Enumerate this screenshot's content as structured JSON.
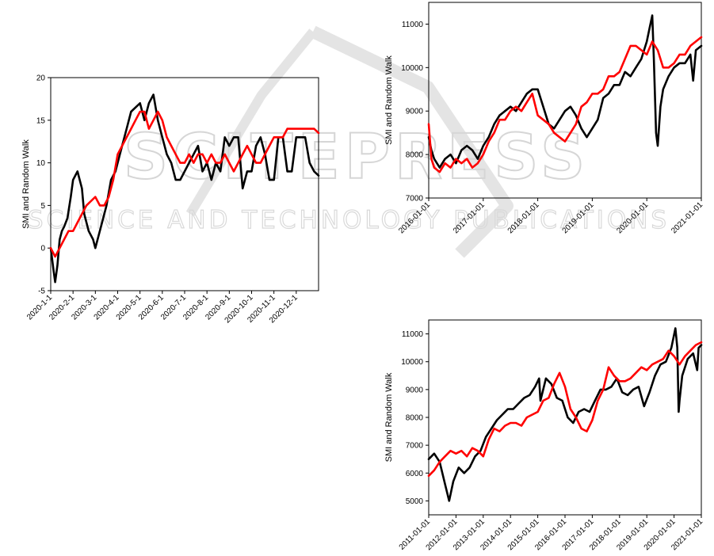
{
  "watermark": {
    "title": "SCITEPRESS",
    "subtitle": "SCIENCE AND TECHNOLOGY PUBLICATIONS"
  },
  "colors": {
    "smi": "#000000",
    "random_walk": "#ff0000"
  },
  "chart_data": [
    {
      "type": "line",
      "ylabel": "SMI and Random Walk",
      "ylim": [
        -5,
        20
      ],
      "yticks": [
        "-5",
        "0",
        "5",
        "10",
        "15",
        "20"
      ],
      "xticks": [
        "2020-1-1",
        "2020-2-1",
        "2020-3-1",
        "2020-4-1",
        "2020-5-1",
        "2020-6-1",
        "2020-7-1",
        "2020-8-1",
        "2020-9-1",
        "2020-10-1",
        "2020-11-1",
        "2020-12-1"
      ],
      "series": [
        {
          "color": "black",
          "x": [
            0,
            0.05,
            0.12,
            0.2,
            0.3,
            0.4,
            0.5,
            0.6,
            0.75,
            0.9,
            1.0,
            1.2,
            1.4,
            1.5,
            1.7,
            1.9,
            2.0,
            2.3,
            2.5,
            2.7,
            2.9,
            3.0,
            3.2,
            3.4,
            3.6,
            3.8,
            4.0,
            4.2,
            4.4,
            4.6,
            4.8,
            5.0,
            5.2,
            5.4,
            5.6,
            5.8,
            6.0,
            6.2,
            6.4,
            6.6,
            6.8,
            7.0,
            7.2,
            7.4,
            7.6,
            7.8,
            8.0,
            8.2,
            8.4,
            8.6,
            8.8,
            9.0,
            9.2,
            9.4,
            9.6,
            9.8,
            10.0,
            10.2,
            10.4,
            10.6,
            10.8,
            11.0,
            11.2,
            11.4,
            11.6,
            11.8,
            12.0
          ],
          "y": [
            0,
            -1,
            -2.5,
            -4,
            -2,
            1,
            2,
            2.5,
            3.5,
            6,
            8,
            9,
            7,
            4,
            2,
            1,
            0,
            3,
            5,
            8,
            9,
            10,
            12,
            14,
            16,
            16.5,
            17,
            15,
            17,
            18,
            15,
            13,
            11,
            10,
            8,
            8,
            9,
            10,
            11,
            12,
            9,
            10,
            8,
            10,
            9,
            13,
            12,
            13,
            13,
            7,
            9,
            9,
            12,
            13,
            11,
            8,
            8,
            13,
            13,
            9,
            9,
            13,
            13,
            13,
            10,
            9,
            8.5
          ]
        },
        {
          "color": "red",
          "x": [
            0,
            0.2,
            0.4,
            0.6,
            0.8,
            1.0,
            1.2,
            1.4,
            1.6,
            1.8,
            2.0,
            2.2,
            2.4,
            2.6,
            2.8,
            3.0,
            3.2,
            3.4,
            3.6,
            3.8,
            4.0,
            4.2,
            4.4,
            4.6,
            4.8,
            5.0,
            5.2,
            5.4,
            5.6,
            5.8,
            6.0,
            6.2,
            6.4,
            6.6,
            6.8,
            7.0,
            7.2,
            7.4,
            7.6,
            7.8,
            8.0,
            8.2,
            8.4,
            8.6,
            8.8,
            9.0,
            9.2,
            9.4,
            9.6,
            9.8,
            10.0,
            10.2,
            10.4,
            10.6,
            10.8,
            11.0,
            11.2,
            11.4,
            11.6,
            11.8,
            12.0
          ],
          "y": [
            0,
            -1,
            0,
            1,
            2,
            2,
            3,
            4,
            5,
            5.5,
            6,
            5,
            5,
            6,
            8,
            11,
            12,
            13,
            14,
            15,
            16,
            16,
            14,
            15,
            16,
            15,
            13,
            12,
            11,
            10,
            10,
            11,
            10,
            11,
            11,
            10,
            11,
            10,
            10,
            11,
            10,
            9,
            10,
            11,
            12,
            11,
            10,
            10,
            11,
            12,
            13,
            13,
            13,
            14,
            14,
            14,
            14,
            14,
            14,
            14,
            13.5
          ]
        }
      ]
    },
    {
      "type": "line",
      "ylabel": "SMI and Random Walk",
      "ylim": [
        7000,
        11500
      ],
      "yticks": [
        "7000",
        "8000",
        "9000",
        "10000",
        "11000"
      ],
      "xticks": [
        "2016-01-01",
        "2017-01-01",
        "2018-01-01",
        "2019-01-01",
        "2020-01-01",
        "2021-01-01"
      ],
      "series": [
        {
          "color": "black",
          "x": [
            2016.0,
            2016.05,
            2016.1,
            2016.2,
            2016.3,
            2016.4,
            2016.5,
            2016.6,
            2016.7,
            2016.8,
            2016.9,
            2017.0,
            2017.1,
            2017.2,
            2017.3,
            2017.4,
            2017.5,
            2017.6,
            2017.7,
            2017.8,
            2017.9,
            2018.0,
            2018.1,
            2018.2,
            2018.3,
            2018.4,
            2018.5,
            2018.6,
            2018.7,
            2018.8,
            2018.9,
            2019.0,
            2019.1,
            2019.2,
            2019.3,
            2019.4,
            2019.5,
            2019.6,
            2019.7,
            2019.8,
            2019.9,
            2020.0,
            2020.05,
            2020.1,
            2020.13,
            2020.17,
            2020.2,
            2020.25,
            2020.3,
            2020.4,
            2020.5,
            2020.6,
            2020.7,
            2020.8,
            2020.85,
            2020.9,
            2021.0
          ],
          "y": [
            8400,
            8100,
            7900,
            7700,
            7900,
            8000,
            7800,
            8100,
            8200,
            8100,
            7900,
            8200,
            8400,
            8700,
            8900,
            9000,
            9100,
            9000,
            9200,
            9400,
            9500,
            9500,
            9100,
            8700,
            8600,
            8800,
            9000,
            9100,
            8900,
            8600,
            8400,
            8600,
            8800,
            9300,
            9400,
            9600,
            9600,
            9900,
            9800,
            10000,
            10200,
            10600,
            10900,
            11200,
            10200,
            8500,
            8200,
            9100,
            9500,
            9800,
            10000,
            10100,
            10100,
            10300,
            9700,
            10400,
            10500
          ]
        },
        {
          "color": "red",
          "x": [
            2016.0,
            2016.05,
            2016.1,
            2016.2,
            2016.3,
            2016.4,
            2016.5,
            2016.6,
            2016.7,
            2016.8,
            2016.9,
            2017.0,
            2017.1,
            2017.2,
            2017.3,
            2017.4,
            2017.5,
            2017.6,
            2017.7,
            2017.8,
            2017.9,
            2018.0,
            2018.1,
            2018.2,
            2018.3,
            2018.4,
            2018.5,
            2018.6,
            2018.7,
            2018.8,
            2018.9,
            2019.0,
            2019.1,
            2019.2,
            2019.3,
            2019.4,
            2019.5,
            2019.6,
            2019.7,
            2019.8,
            2019.9,
            2020.0,
            2020.1,
            2020.2,
            2020.3,
            2020.4,
            2020.5,
            2020.6,
            2020.7,
            2020.8,
            2020.9,
            2021.0
          ],
          "y": [
            8700,
            7900,
            7700,
            7600,
            7800,
            7700,
            7900,
            7800,
            7900,
            7700,
            7800,
            8000,
            8300,
            8500,
            8800,
            8800,
            9000,
            9100,
            9000,
            9200,
            9400,
            8900,
            8800,
            8700,
            8500,
            8400,
            8300,
            8500,
            8700,
            9100,
            9200,
            9400,
            9400,
            9500,
            9800,
            9800,
            9900,
            10200,
            10500,
            10500,
            10400,
            10300,
            10600,
            10400,
            10000,
            10000,
            10100,
            10300,
            10300,
            10500,
            10600,
            10700
          ]
        }
      ]
    },
    {
      "type": "line",
      "ylabel": "SMI and Random Walk",
      "ylim": [
        4500,
        11500
      ],
      "yticks": [
        "5000",
        "6000",
        "7000",
        "8000",
        "9000",
        "10000",
        "11000"
      ],
      "xticks": [
        "2011-01-01",
        "2012-01-01",
        "2013-01-01",
        "2014-01-01",
        "2015-01-01",
        "2016-01-01",
        "2017-01-01",
        "2018-01-01",
        "2019-01-01",
        "2020-01-01",
        "2021-01-01"
      ],
      "series": [
        {
          "color": "black",
          "x": [
            2011.0,
            2011.2,
            2011.4,
            2011.6,
            2011.75,
            2011.9,
            2012.1,
            2012.3,
            2012.5,
            2012.7,
            2012.9,
            2013.1,
            2013.3,
            2013.5,
            2013.7,
            2013.9,
            2014.1,
            2014.3,
            2014.5,
            2014.7,
            2014.9,
            2015.05,
            2015.1,
            2015.3,
            2015.5,
            2015.7,
            2015.9,
            2016.1,
            2016.3,
            2016.5,
            2016.7,
            2016.9,
            2017.1,
            2017.3,
            2017.5,
            2017.7,
            2017.9,
            2018.1,
            2018.3,
            2018.5,
            2018.7,
            2018.9,
            2019.1,
            2019.3,
            2019.5,
            2019.7,
            2019.9,
            2020.05,
            2020.12,
            2020.17,
            2020.2,
            2020.3,
            2020.5,
            2020.7,
            2020.85,
            2020.9,
            2021.0
          ],
          "y": [
            6500,
            6700,
            6400,
            5600,
            5000,
            5700,
            6200,
            6000,
            6200,
            6600,
            6800,
            7300,
            7600,
            7900,
            8100,
            8300,
            8300,
            8500,
            8700,
            8800,
            9100,
            9400,
            8600,
            9400,
            9200,
            8700,
            8600,
            8000,
            7800,
            8200,
            8300,
            8200,
            8600,
            9000,
            9000,
            9100,
            9400,
            8900,
            8800,
            9000,
            9100,
            8400,
            8900,
            9500,
            9900,
            10000,
            10500,
            11200,
            10500,
            8200,
            8600,
            9500,
            10100,
            10300,
            9700,
            10500,
            10600
          ]
        },
        {
          "color": "red",
          "x": [
            2011.0,
            2011.2,
            2011.4,
            2011.6,
            2011.8,
            2012.0,
            2012.2,
            2012.4,
            2012.6,
            2012.8,
            2013.0,
            2013.2,
            2013.4,
            2013.6,
            2013.8,
            2014.0,
            2014.2,
            2014.4,
            2014.6,
            2014.8,
            2015.0,
            2015.2,
            2015.4,
            2015.6,
            2015.8,
            2016.0,
            2016.2,
            2016.4,
            2016.6,
            2016.8,
            2017.0,
            2017.2,
            2017.4,
            2017.6,
            2017.8,
            2018.0,
            2018.2,
            2018.4,
            2018.6,
            2018.8,
            2019.0,
            2019.2,
            2019.4,
            2019.6,
            2019.8,
            2020.0,
            2020.2,
            2020.4,
            2020.6,
            2020.8,
            2021.0
          ],
          "y": [
            5900,
            6100,
            6400,
            6600,
            6800,
            6700,
            6800,
            6600,
            6900,
            6800,
            6600,
            7200,
            7600,
            7500,
            7700,
            7800,
            7800,
            7700,
            8000,
            8100,
            8200,
            8600,
            8700,
            9200,
            9600,
            9100,
            8300,
            8000,
            7600,
            7500,
            7900,
            8600,
            9000,
            9800,
            9500,
            9300,
            9300,
            9400,
            9600,
            9800,
            9700,
            9900,
            10000,
            10100,
            10400,
            10200,
            9900,
            10200,
            10400,
            10600,
            10700
          ]
        }
      ]
    }
  ]
}
